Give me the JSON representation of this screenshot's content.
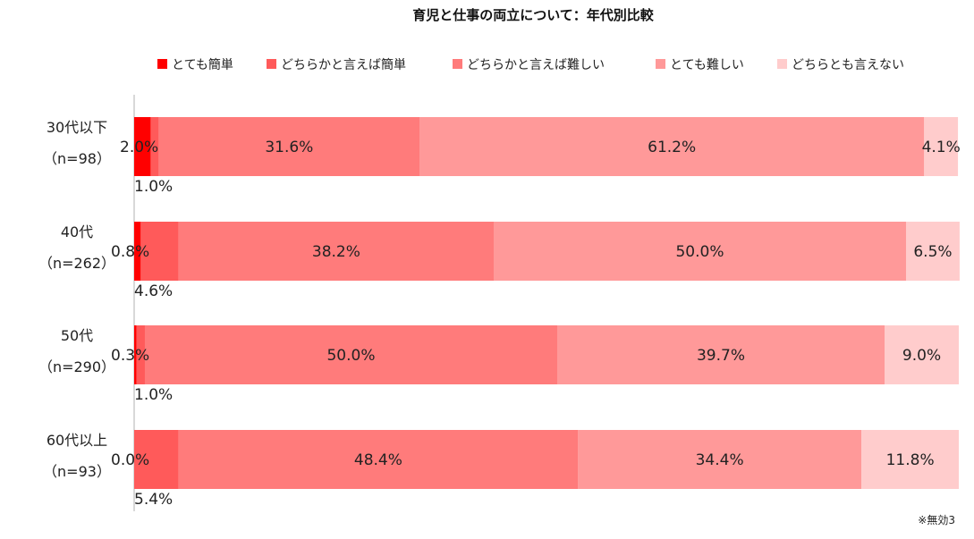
{
  "chart_data": {
    "type": "bar",
    "orientation": "horizontal",
    "stacked": true,
    "percent": true,
    "title": "育児と仕事の両立について：年代別比較",
    "footnote": "※無効3",
    "legend_position": "top",
    "categories": [
      [
        "30代以下",
        "（n=98）"
      ],
      [
        "40代",
        "（n=262）"
      ],
      [
        "50代",
        "（n=290）"
      ],
      [
        "60代以上",
        "（n=93）"
      ]
    ],
    "series": [
      {
        "name": "とても簡単",
        "color": "#ff0000",
        "values": [
          2.0,
          0.8,
          0.3,
          0.0
        ],
        "labels": [
          "2.0%",
          "0.8%",
          "0.3%",
          "0.0%"
        ]
      },
      {
        "name": "どちらかと言えば簡単",
        "color": "#ff5a5a",
        "values": [
          1.0,
          4.6,
          1.0,
          5.4
        ],
        "labels": [
          "1.0%",
          "4.6%",
          "1.0%",
          "5.4%"
        ]
      },
      {
        "name": "どちらかと言えば難しい",
        "color": "#ff7b7b",
        "values": [
          31.6,
          38.2,
          50.0,
          48.4
        ],
        "labels": [
          "31.6%",
          "38.2%",
          "50.0%",
          "48.4%"
        ]
      },
      {
        "name": "とても難しい",
        "color": "#ff9999",
        "values": [
          61.2,
          50.0,
          39.7,
          34.4
        ],
        "labels": [
          "61.2%",
          "50.0%",
          "39.7%",
          "34.4%"
        ]
      },
      {
        "name": "どちらとも言えない",
        "color": "#ffcccc",
        "values": [
          4.1,
          6.5,
          9.0,
          11.8
        ],
        "labels": [
          "4.1%",
          "6.5%",
          "9.0%",
          "11.8%"
        ]
      }
    ]
  }
}
